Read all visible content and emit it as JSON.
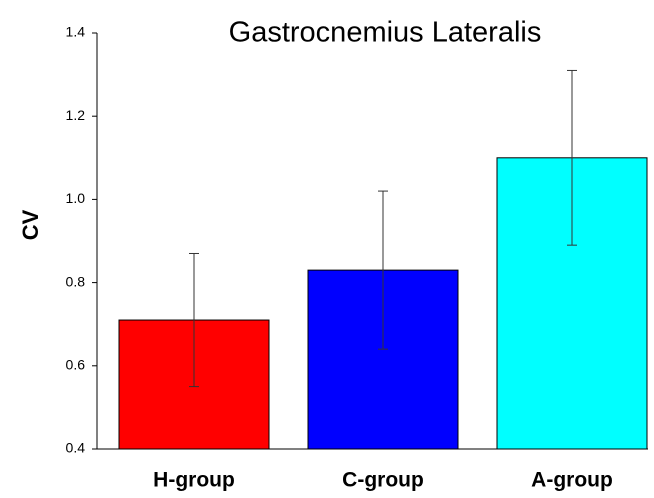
{
  "chart_data": {
    "type": "bar",
    "title": "Gastrocnemius Lateralis",
    "y_label": "CV",
    "categories": [
      "H-group",
      "C-group",
      "A-group"
    ],
    "values": [
      0.71,
      0.83,
      1.1
    ],
    "errors": [
      0.16,
      0.19,
      0.21
    ],
    "colors": [
      "#ff0000",
      "#0000ff",
      "#00ffff"
    ],
    "ylim": [
      0.4,
      1.4
    ],
    "yticks": [
      0.4,
      0.6,
      0.8,
      {
        "value": 1,
        "label": "1.0"
      },
      1.2,
      1.4
    ]
  }
}
